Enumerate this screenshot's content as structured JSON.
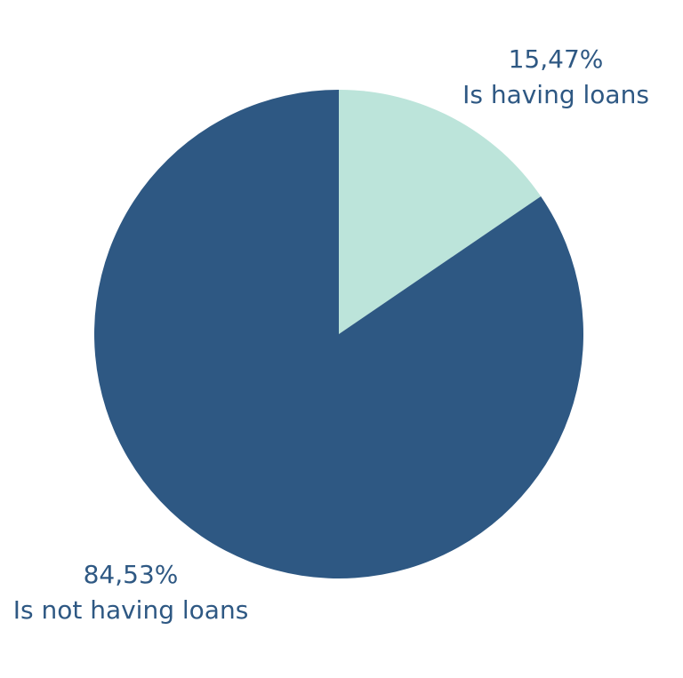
{
  "chart_data": {
    "type": "pie",
    "slices": [
      {
        "label": "Is having loans",
        "value": 15.47,
        "value_text": "15,47%",
        "color": "#bce4da"
      },
      {
        "label": "Is not having loans",
        "value": 84.53,
        "value_text": "84,53%",
        "color": "#2e5883"
      }
    ],
    "start_angle_deg": 0,
    "direction": "clockwise",
    "legend": "none"
  }
}
